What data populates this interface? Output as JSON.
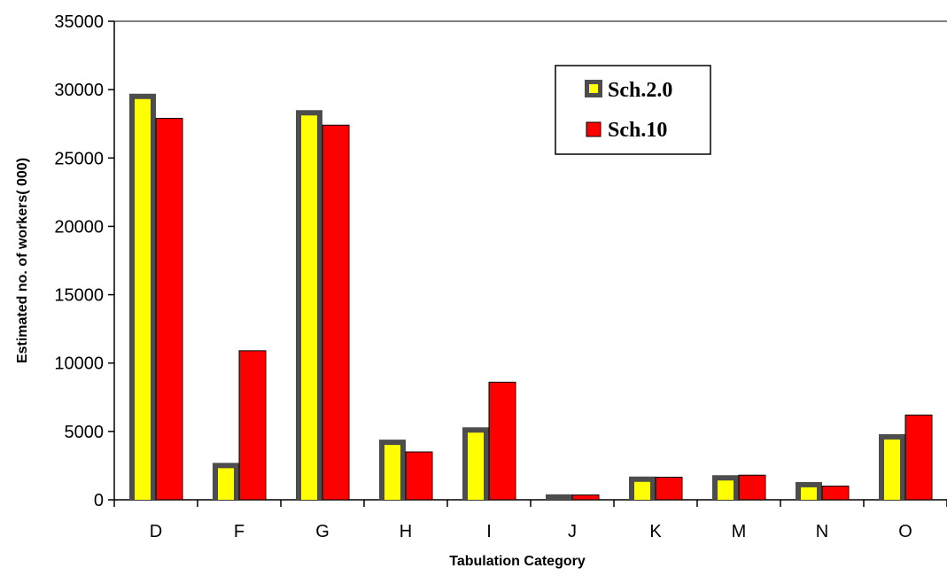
{
  "chart_data": {
    "type": "bar",
    "xlabel": "Tabulation Category",
    "ylabel": "Estimated no. of workers( 000)",
    "ylim": [
      0,
      35000
    ],
    "yticks": [
      0,
      5000,
      10000,
      15000,
      20000,
      25000,
      30000,
      35000
    ],
    "grid": false,
    "legend_position": "top-right",
    "categories": [
      "D",
      "F",
      "G",
      "H",
      "I",
      "J",
      "K",
      "M",
      "N",
      "O"
    ],
    "series": [
      {
        "name": "Sch.2.0",
        "values": [
          29700,
          2700,
          28500,
          4400,
          5300,
          400,
          1700,
          1800,
          1300,
          4800
        ],
        "fill": "#ffff00",
        "border": "#4d4d4d"
      },
      {
        "name": "Sch.10",
        "values": [
          27900,
          10900,
          27400,
          3500,
          8600,
          350,
          1650,
          1800,
          1000,
          6200
        ],
        "fill": "#ff0000",
        "border": "#000000"
      }
    ]
  }
}
